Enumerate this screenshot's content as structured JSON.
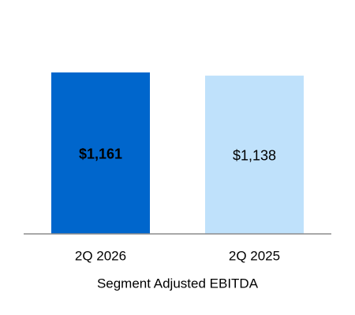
{
  "chart_data": {
    "type": "bar",
    "xlabel": "Segment Adjusted EBITDA",
    "categories": [
      "2Q 2026",
      "2Q 2025"
    ],
    "values": [
      1161,
      1138
    ],
    "value_labels": [
      "$1,161",
      "$1,138"
    ],
    "colors": [
      "#0066cc",
      "#bfe1fb"
    ],
    "label_colors": [
      "#ffffff",
      "#000000"
    ]
  }
}
